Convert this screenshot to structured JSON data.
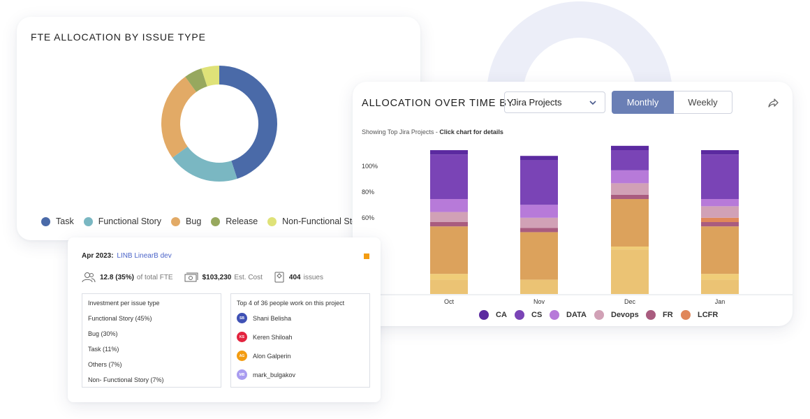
{
  "fte_card": {
    "title": "FTE ALLOCATION BY ISSUE TYPE",
    "legend": [
      {
        "label": "Task",
        "color": "#4a6aa8"
      },
      {
        "label": "Functional Story",
        "color": "#7ab7c2"
      },
      {
        "label": "Bug",
        "color": "#e2aa66"
      },
      {
        "label": "Release",
        "color": "#97a85e"
      },
      {
        "label": "Non-Functional Story",
        "color": "#dfe278"
      }
    ]
  },
  "time_card": {
    "title": "ALLOCATION OVER TIME BY",
    "dropdown_value": "Jira Projects",
    "toggle": {
      "monthly": "Monthly",
      "weekly": "Weekly"
    },
    "subtitle_prefix": "Showing Top Jira Projects - ",
    "subtitle_bold": "Click chart for details",
    "icons": {
      "dropdown": "chevron-down-icon",
      "share": "share-icon"
    }
  },
  "detail_card": {
    "period": "Apr 2023:",
    "project_link": "LINB LinearB dev",
    "fte_value": "12.8 (35%)",
    "fte_label": "of total FTE",
    "cost_value": "$103,230",
    "cost_label": "Est. Cost",
    "issues_value": "404",
    "issues_label": "issues",
    "marker_color": "#f39c12",
    "investment": {
      "heading": "Investment per issue type",
      "items": [
        "Functional Story (45%)",
        "Bug (30%)",
        "Task (11%)",
        "Others (7%)",
        "Non- Functional Story (7%)"
      ]
    },
    "people": {
      "heading": "Top 4 of 36 people work on this project",
      "list": [
        {
          "initials": "SB",
          "name": "Shani Belisha",
          "color": "#3f51b5"
        },
        {
          "initials": "KS",
          "name": "Keren Shiloah",
          "color": "#e3243f"
        },
        {
          "initials": "AG",
          "name": "Alon Galperin",
          "color": "#f39c12"
        },
        {
          "initials": "MB",
          "name": "mark_bulgakov",
          "color": "#a99cf0"
        }
      ]
    }
  },
  "chart_data": [
    {
      "type": "pie",
      "donut": true,
      "categories": [
        "Task",
        "Functional Story",
        "Bug",
        "Release",
        "Non-Functional Story"
      ],
      "values": [
        45,
        20,
        25,
        5,
        5
      ],
      "colors": [
        "#4a6aa8",
        "#7ab7c2",
        "#e2aa66",
        "#97a85e",
        "#dfe278"
      ]
    },
    {
      "type": "bar",
      "stacked": true,
      "categories": [
        "Oct",
        "Nov",
        "Dec",
        "Jan"
      ],
      "yticks": [
        "100%",
        "80%",
        "60%"
      ],
      "ylim": [
        0,
        100
      ],
      "legend_items": [
        {
          "name": "CA",
          "color": "#5b2aa0"
        },
        {
          "name": "CS",
          "color": "#7a44b6"
        },
        {
          "name": "DATA",
          "color": "#b77ad9"
        },
        {
          "name": "Devops",
          "color": "#d1a1b6"
        },
        {
          "name": "FR",
          "color": "#a95c7f"
        },
        {
          "name": "LCFR",
          "color": "#e0875a"
        }
      ],
      "segments": [
        {
          "name": "seg-light",
          "color": "#ebc374",
          "values": [
            10,
            10,
            31,
            10
          ]
        },
        {
          "name": "seg-mid",
          "color": "#f0cd78",
          "values": [
            4,
            0,
            2,
            4
          ]
        },
        {
          "name": "seg-orange",
          "color": "#dca25c",
          "values": [
            33,
            33,
            33,
            33
          ]
        },
        {
          "name": "FR",
          "color": "#a95c7f",
          "values": [
            3,
            3,
            3,
            3
          ]
        },
        {
          "name": "LCFR",
          "color": "#e0875a",
          "values": [
            0,
            0,
            0,
            3
          ]
        },
        {
          "name": "Devops",
          "color": "#d1a1b6",
          "values": [
            7,
            7,
            8,
            8
          ]
        },
        {
          "name": "DATA",
          "color": "#b77ad9",
          "values": [
            9,
            9,
            9,
            5
          ]
        },
        {
          "name": "CS",
          "color": "#7a44b6",
          "values": [
            31,
            31,
            14,
            31
          ]
        },
        {
          "name": "CA",
          "color": "#5b2aa0",
          "values": [
            3,
            3,
            3,
            3
          ]
        }
      ]
    }
  ]
}
